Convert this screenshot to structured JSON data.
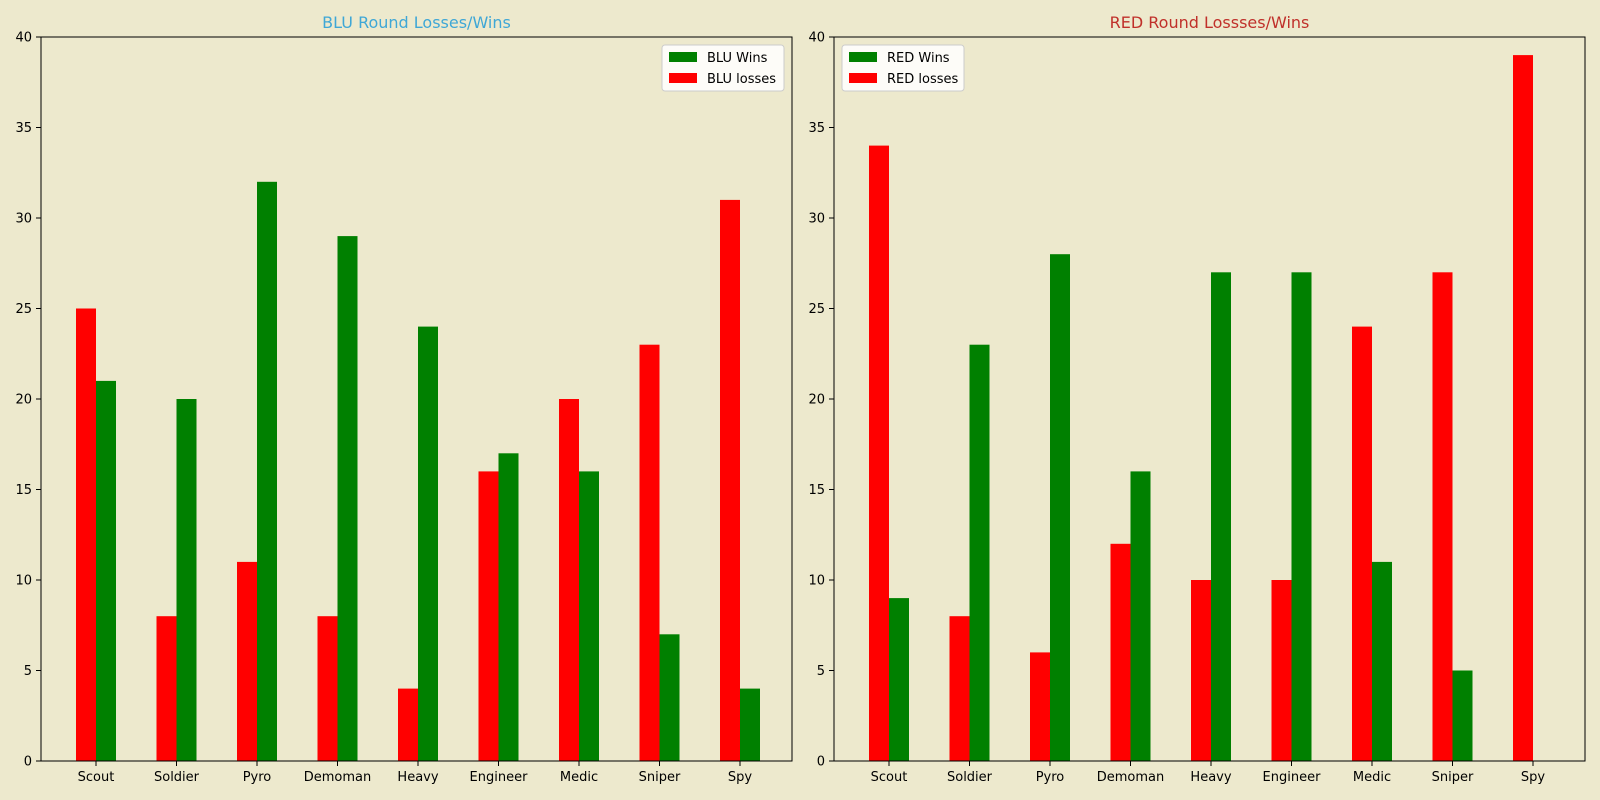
{
  "chart_data": [
    {
      "type": "bar",
      "title": "BLU Round Losses/Wins",
      "title_color": "#3fa7d6",
      "categories": [
        "Scout",
        "Soldier",
        "Pyro",
        "Demoman",
        "Heavy",
        "Engineer",
        "Medic",
        "Sniper",
        "Spy"
      ],
      "series": [
        {
          "name": "BLU Wins",
          "color": "#008000",
          "values": [
            21,
            20,
            32,
            29,
            24,
            17,
            16,
            7,
            4
          ]
        },
        {
          "name": "BLU losses",
          "color": "#ff0000",
          "values": [
            25,
            8,
            11,
            8,
            4,
            16,
            20,
            23,
            31
          ]
        }
      ],
      "yticks": [
        "0",
        "5",
        "10",
        "15",
        "20",
        "25",
        "30",
        "35",
        "40"
      ],
      "ylim": [
        0,
        40
      ],
      "grid": false,
      "legend_position": "top-right"
    },
    {
      "type": "bar",
      "title": "RED Round Lossses/Wins",
      "title_color": "#c0302a",
      "categories": [
        "Scout",
        "Soldier",
        "Pyro",
        "Demoman",
        "Heavy",
        "Engineer",
        "Medic",
        "Sniper",
        "Spy"
      ],
      "series": [
        {
          "name": "RED Wins",
          "color": "#008000",
          "values": [
            9,
            23,
            28,
            16,
            27,
            27,
            11,
            5,
            0
          ]
        },
        {
          "name": "RED losses",
          "color": "#ff0000",
          "values": [
            34,
            8,
            6,
            12,
            10,
            10,
            24,
            27,
            39
          ]
        }
      ],
      "yticks": [
        "0",
        "5",
        "10",
        "15",
        "20",
        "25",
        "30",
        "35",
        "40"
      ],
      "ylim": [
        0,
        40
      ],
      "grid": false,
      "legend_position": "top-left"
    }
  ]
}
